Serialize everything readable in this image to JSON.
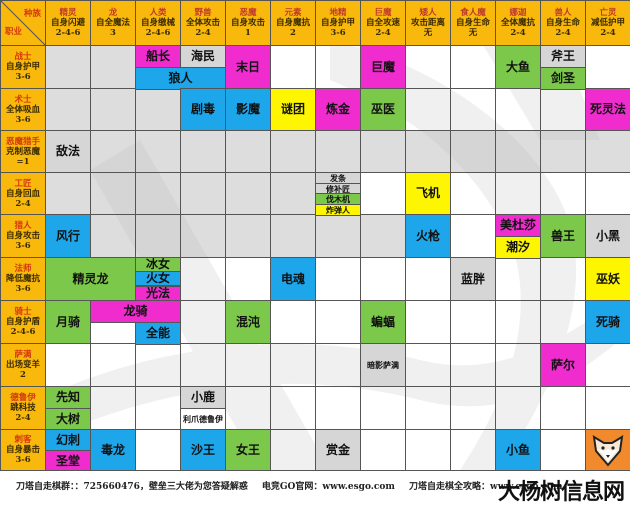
{
  "corner": {
    "top_right": "种族",
    "bottom_left": "职业"
  },
  "races": [
    {
      "name": "精灵",
      "bonus": "自身闪避",
      "counts": "2-4-6"
    },
    {
      "name": "龙",
      "bonus": "自全魔法",
      "counts": "3"
    },
    {
      "name": "人类",
      "bonus": "自身缴械",
      "counts": "2-4-6"
    },
    {
      "name": "野兽",
      "bonus": "全体攻击",
      "counts": "2-4"
    },
    {
      "name": "恶魔",
      "bonus": "自身攻击",
      "counts": "1"
    },
    {
      "name": "元素",
      "bonus": "自身魔抗",
      "counts": "2"
    },
    {
      "name": "地精",
      "bonus": "自身护甲",
      "counts": "3-6"
    },
    {
      "name": "巨魔",
      "bonus": "自全攻速",
      "counts": "2-4"
    },
    {
      "name": "矮人",
      "bonus": "攻击距离",
      "counts": "无"
    },
    {
      "name": "食人魔",
      "bonus": "自身生命",
      "counts": "无"
    },
    {
      "name": "娜迦",
      "bonus": "全体魔抗",
      "counts": "2-4"
    },
    {
      "name": "兽人",
      "bonus": "自身生命",
      "counts": "2-4"
    },
    {
      "name": "亡灵",
      "bonus": "减低护甲",
      "counts": "2-4"
    }
  ],
  "classes": [
    {
      "name": "战士",
      "bonus": "自身护甲",
      "counts": "3-6"
    },
    {
      "name": "术士",
      "bonus": "全体吸血",
      "counts": "3-6"
    },
    {
      "name": "恶魔猎手",
      "bonus": "克制恶魔",
      "counts": "=1"
    },
    {
      "name": "工匠",
      "bonus": "自身回血",
      "counts": "2-4"
    },
    {
      "name": "猎人",
      "bonus": "自身攻击",
      "counts": "3-6"
    },
    {
      "name": "法师",
      "bonus": "降低魔抗",
      "counts": "3-6"
    },
    {
      "name": "骑士",
      "bonus": "自身护盾",
      "counts": "2-4-6"
    },
    {
      "name": "萨满",
      "bonus": "出场变羊",
      "counts": "2"
    },
    {
      "name": "德鲁伊",
      "bonus": "跳科技",
      "counts": "2-4"
    },
    {
      "name": "刺客",
      "bonus": "自身暴击",
      "counts": "3-6"
    }
  ],
  "pieces": [
    {
      "id": "p0",
      "name": "船长",
      "color": "pink",
      "row": 0,
      "col": 2,
      "rspan": 0.5,
      "cspan": 1,
      "roff": 0
    },
    {
      "id": "p1",
      "name": "海民",
      "color": "gray",
      "row": 0,
      "col": 3,
      "rspan": 0.5,
      "cspan": 1,
      "roff": 0
    },
    {
      "id": "p2",
      "name": "狼人",
      "color": "blue",
      "row": 0,
      "col": 2,
      "rspan": 0.5,
      "cspan": 2,
      "roff": 0.5
    },
    {
      "id": "p3",
      "name": "末日",
      "color": "pink",
      "row": 0,
      "col": 4,
      "rspan": 1,
      "cspan": 1,
      "roff": 0
    },
    {
      "id": "p4",
      "name": "巨魔",
      "color": "pink",
      "row": 0,
      "col": 7,
      "rspan": 1,
      "cspan": 1,
      "roff": 0
    },
    {
      "id": "p5",
      "name": "大鱼",
      "color": "green",
      "row": 0,
      "col": 10,
      "rspan": 1,
      "cspan": 1,
      "roff": 0
    },
    {
      "id": "p6",
      "name": "斧王",
      "color": "gray",
      "row": 0,
      "col": 11,
      "rspan": 0.5,
      "cspan": 1,
      "roff": 0
    },
    {
      "id": "p7",
      "name": "剑圣",
      "color": "green",
      "row": 0,
      "col": 11,
      "rspan": 0.5,
      "cspan": 1,
      "roff": 0.5
    },
    {
      "id": "p8",
      "name": "剧毒",
      "color": "blue",
      "row": 1,
      "col": 3,
      "rspan": 1,
      "cspan": 1,
      "roff": 0
    },
    {
      "id": "p9",
      "name": "影魔",
      "color": "blue",
      "row": 1,
      "col": 4,
      "rspan": 1,
      "cspan": 1,
      "roff": 0
    },
    {
      "id": "p10",
      "name": "谜团",
      "color": "yellow",
      "row": 1,
      "col": 5,
      "rspan": 1,
      "cspan": 1,
      "roff": 0
    },
    {
      "id": "p11",
      "name": "炼金",
      "color": "pink",
      "row": 1,
      "col": 6,
      "rspan": 1,
      "cspan": 1,
      "roff": 0
    },
    {
      "id": "p12",
      "name": "巫医",
      "color": "green",
      "row": 1,
      "col": 7,
      "rspan": 1,
      "cspan": 1,
      "roff": 0
    },
    {
      "id": "p13",
      "name": "死灵法",
      "color": "pink",
      "row": 1,
      "col": 12,
      "rspan": 1,
      "cspan": 1,
      "roff": 0
    },
    {
      "id": "p14",
      "name": "敌法",
      "color": "gray",
      "row": 2,
      "col": 0,
      "rspan": 1,
      "cspan": 1,
      "roff": 0
    },
    {
      "id": "p15",
      "name": "发条",
      "color": "gray",
      "row": 3,
      "col": 6,
      "rspan": 0.25,
      "cspan": 1,
      "roff": 0,
      "small": true
    },
    {
      "id": "p16",
      "name": "修补匠",
      "color": "gray",
      "row": 3,
      "col": 6,
      "rspan": 0.25,
      "cspan": 1,
      "roff": 0.25,
      "small": true
    },
    {
      "id": "p17",
      "name": "伐木机",
      "color": "green",
      "row": 3,
      "col": 6,
      "rspan": 0.25,
      "cspan": 1,
      "roff": 0.5,
      "small": true
    },
    {
      "id": "p18",
      "name": "炸弹人",
      "color": "yellow",
      "row": 3,
      "col": 6,
      "rspan": 0.25,
      "cspan": 1,
      "roff": 0.75,
      "small": true
    },
    {
      "id": "p19",
      "name": "飞机",
      "color": "yellow",
      "row": 3,
      "col": 8,
      "rspan": 1,
      "cspan": 1,
      "roff": 0
    },
    {
      "id": "p20",
      "name": "风行",
      "color": "blue",
      "row": 4,
      "col": 0,
      "rspan": 1,
      "cspan": 1,
      "roff": 0
    },
    {
      "id": "p21",
      "name": "火枪",
      "color": "blue",
      "row": 4,
      "col": 8,
      "rspan": 1,
      "cspan": 1,
      "roff": 0
    },
    {
      "id": "p22",
      "name": "美杜莎",
      "color": "pink",
      "row": 4,
      "col": 10,
      "rspan": 0.5,
      "cspan": 1,
      "roff": 0
    },
    {
      "id": "p23",
      "name": "潮汐",
      "color": "yellow",
      "row": 4,
      "col": 10,
      "rspan": 0.5,
      "cspan": 1,
      "roff": 0.5
    },
    {
      "id": "p24",
      "name": "兽王",
      "color": "green",
      "row": 4,
      "col": 11,
      "rspan": 1,
      "cspan": 1,
      "roff": 0
    },
    {
      "id": "p25",
      "name": "小黑",
      "color": "gray",
      "row": 4,
      "col": 12,
      "rspan": 1,
      "cspan": 1,
      "roff": 0
    },
    {
      "id": "p26",
      "name": "精灵龙",
      "color": "green",
      "row": 5,
      "col": 0,
      "rspan": 1,
      "cspan": 2,
      "roff": 0
    },
    {
      "id": "p27",
      "name": "冰女",
      "color": "green",
      "row": 5,
      "col": 2,
      "rspan": 0.333,
      "cspan": 1,
      "roff": 0
    },
    {
      "id": "p28",
      "name": "火女",
      "color": "blue",
      "row": 5,
      "col": 2,
      "rspan": 0.333,
      "cspan": 1,
      "roff": 0.333
    },
    {
      "id": "p29",
      "name": "光法",
      "color": "pink",
      "row": 5,
      "col": 2,
      "rspan": 0.334,
      "cspan": 1,
      "roff": 0.666
    },
    {
      "id": "p30",
      "name": "电魂",
      "color": "blue",
      "row": 5,
      "col": 5,
      "rspan": 1,
      "cspan": 1,
      "roff": 0
    },
    {
      "id": "p31",
      "name": "蓝胖",
      "color": "gray",
      "row": 5,
      "col": 9,
      "rspan": 1,
      "cspan": 1,
      "roff": 0
    },
    {
      "id": "p32",
      "name": "巫妖",
      "color": "yellow",
      "row": 5,
      "col": 12,
      "rspan": 1,
      "cspan": 1,
      "roff": 0
    },
    {
      "id": "p33",
      "name": "月骑",
      "color": "green",
      "row": 6,
      "col": 0,
      "rspan": 1,
      "cspan": 1,
      "roff": 0
    },
    {
      "id": "p34",
      "name": "龙骑",
      "color": "pink",
      "row": 6,
      "col": 1,
      "rspan": 0.5,
      "cspan": 2,
      "roff": 0
    },
    {
      "id": "p35",
      "name": "全能",
      "color": "blue",
      "row": 6,
      "col": 2,
      "rspan": 0.5,
      "cspan": 1,
      "roff": 0.5
    },
    {
      "id": "p36",
      "name": "混沌",
      "color": "green",
      "row": 6,
      "col": 4,
      "rspan": 1,
      "cspan": 1,
      "roff": 0
    },
    {
      "id": "p37",
      "name": "蝙蝠",
      "color": "green",
      "row": 6,
      "col": 7,
      "rspan": 1,
      "cspan": 1,
      "roff": 0
    },
    {
      "id": "p38",
      "name": "死骑",
      "color": "blue",
      "row": 6,
      "col": 12,
      "rspan": 1,
      "cspan": 1,
      "roff": 0
    },
    {
      "id": "p39",
      "name": "暗影萨满",
      "color": "gray",
      "row": 7,
      "col": 7,
      "rspan": 1,
      "cspan": 1,
      "roff": 0,
      "small": true
    },
    {
      "id": "p40",
      "name": "萨尔",
      "color": "pink",
      "row": 7,
      "col": 11,
      "rspan": 1,
      "cspan": 1,
      "roff": 0
    },
    {
      "id": "p41",
      "name": "先知",
      "color": "green",
      "row": 8,
      "col": 0,
      "rspan": 0.5,
      "cspan": 1,
      "roff": 0
    },
    {
      "id": "p42",
      "name": "大树",
      "color": "green",
      "row": 8,
      "col": 0,
      "rspan": 0.5,
      "cspan": 1,
      "roff": 0.5
    },
    {
      "id": "p43",
      "name": "小鹿",
      "color": "gray",
      "row": 8,
      "col": 3,
      "rspan": 0.5,
      "cspan": 1,
      "roff": 0
    },
    {
      "id": "p44",
      "name": "利爪德鲁伊",
      "color": "white",
      "row": 8,
      "col": 3,
      "rspan": 0.5,
      "cspan": 1,
      "roff": 0.5,
      "small": true
    },
    {
      "id": "p45",
      "name": "幻刺",
      "color": "blue",
      "row": 9,
      "col": 0,
      "rspan": 0.5,
      "cspan": 1,
      "roff": 0
    },
    {
      "id": "p46",
      "name": "圣堂",
      "color": "pink",
      "row": 9,
      "col": 0,
      "rspan": 0.5,
      "cspan": 1,
      "roff": 0.5
    },
    {
      "id": "p47",
      "name": "毒龙",
      "color": "blue",
      "row": 9,
      "col": 1,
      "rspan": 1,
      "cspan": 1,
      "roff": 0
    },
    {
      "id": "p48",
      "name": "沙王",
      "color": "blue",
      "row": 9,
      "col": 3,
      "rspan": 1,
      "cspan": 1,
      "roff": 0
    },
    {
      "id": "p49",
      "name": "女王",
      "color": "green",
      "row": 9,
      "col": 4,
      "rspan": 1,
      "cspan": 1,
      "roff": 0
    },
    {
      "id": "p50",
      "name": "赏金",
      "color": "gray",
      "row": 9,
      "col": 6,
      "rspan": 1,
      "cspan": 1,
      "roff": 0
    },
    {
      "id": "p51",
      "name": "小鱼",
      "color": "blue",
      "row": 9,
      "col": 10,
      "rspan": 1,
      "cspan": 1,
      "roff": 0
    }
  ],
  "gray_bg_cells": [
    [
      0,
      0
    ],
    [
      0,
      1
    ],
    [
      1,
      0
    ],
    [
      1,
      1
    ],
    [
      1,
      2
    ],
    [
      2,
      0
    ],
    [
      2,
      1
    ],
    [
      2,
      2
    ],
    [
      2,
      3
    ],
    [
      2,
      4
    ],
    [
      2,
      5
    ],
    [
      2,
      6
    ],
    [
      2,
      7
    ],
    [
      2,
      8
    ],
    [
      2,
      9
    ],
    [
      2,
      10
    ],
    [
      2,
      11
    ],
    [
      2,
      12
    ],
    [
      3,
      0
    ],
    [
      3,
      1
    ],
    [
      3,
      2
    ],
    [
      3,
      3
    ],
    [
      3,
      4
    ],
    [
      3,
      5
    ],
    [
      4,
      1
    ],
    [
      4,
      2
    ],
    [
      4,
      3
    ],
    [
      4,
      4
    ],
    [
      4,
      5
    ],
    [
      4,
      6
    ],
    [
      4,
      7
    ]
  ],
  "colors": {
    "header_bg": "#f9b90c",
    "gray": "#d6d6d6",
    "blue": "#1ea6ea",
    "pink": "#f02ccf",
    "green": "#7cc84a",
    "yellow": "#fdf600",
    "white": "#ffffff",
    "name_red": "#d4380d",
    "grid_line": "#555555"
  },
  "footer": {
    "group_text": "刀塔自走棋群：：725660476，壁垒三大佬为您答疑解惑",
    "site_text": "电竞GO官网：www.esgo.com",
    "guide_text": "刀塔自走棋全攻略：www.esgo.com"
  },
  "badge": {
    "icon": "fox-mascot-icon"
  },
  "watermark": "大杨树信息网"
}
